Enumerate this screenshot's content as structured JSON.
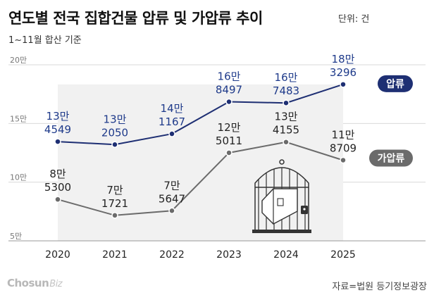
{
  "title": "연도별 전국 집합건물 압류 및 가압류 추이",
  "unit": "단위: 건",
  "subtitle": "1~11월 합산 기준",
  "brand": {
    "name": "Chosun",
    "suffix": "Biz"
  },
  "source": "자료=법원 등기정보광장",
  "colors": {
    "seizure": "#1e2f73",
    "provisional": "#6b6b6b",
    "area": "#f1f1f1"
  },
  "chart_data": {
    "type": "line",
    "title": "연도별 전국 집합건물 압류 및 가압류 추이",
    "categories": [
      "2020",
      "2021",
      "2022",
      "2023",
      "2024",
      "2025"
    ],
    "ylim": [
      50000,
      200000
    ],
    "yticks": [
      {
        "value": 200000,
        "label": "20만"
      },
      {
        "value": 150000,
        "label": "15만"
      },
      {
        "value": 100000,
        "label": "10만"
      },
      {
        "value": 50000,
        "label": "5만"
      }
    ],
    "series": [
      {
        "name": "압류",
        "values": [
          134549,
          132050,
          141167,
          168497,
          167483,
          183296
        ],
        "labels": [
          [
            "13만",
            "4549"
          ],
          [
            "13만",
            "2050"
          ],
          [
            "14만",
            "1167"
          ],
          [
            "16만",
            "8497"
          ],
          [
            "16만",
            "7483"
          ],
          [
            "18만",
            "3296"
          ]
        ]
      },
      {
        "name": "가압류",
        "values": [
          85300,
          71721,
          75647,
          125011,
          134155,
          118709
        ],
        "labels": [
          [
            "8만",
            "5300"
          ],
          [
            "7만",
            "1721"
          ],
          [
            "7만",
            "5647"
          ],
          [
            "12만",
            "5011"
          ],
          [
            "13만",
            "4155"
          ],
          [
            "11만",
            "8709"
          ]
        ]
      }
    ]
  }
}
